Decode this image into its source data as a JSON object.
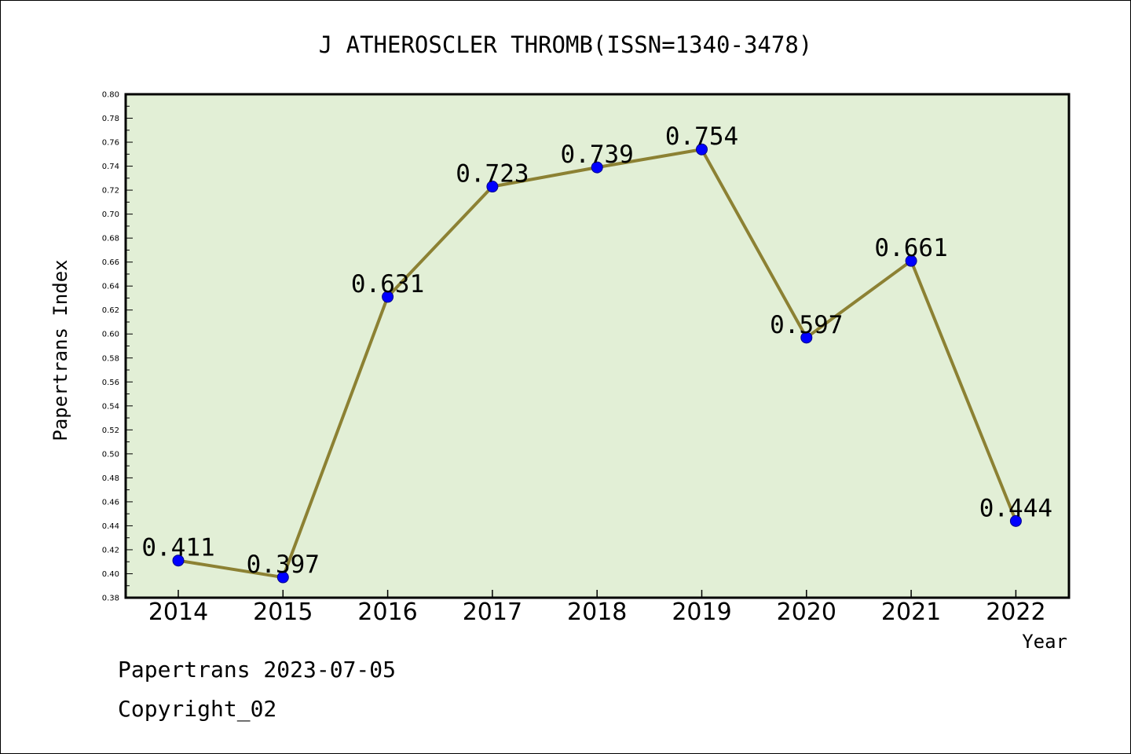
{
  "chart_data": {
    "type": "line",
    "title": "J ATHEROSCLER THROMB(ISSN=1340-3478)",
    "xlabel": "Year",
    "ylabel": "Papertrans Index",
    "categories": [
      "2014",
      "2015",
      "2016",
      "2017",
      "2018",
      "2019",
      "2020",
      "2021",
      "2022"
    ],
    "series": [
      {
        "values": [
          0.411,
          0.397,
          0.631,
          0.723,
          0.739,
          0.754,
          0.597,
          0.661,
          0.444
        ]
      }
    ],
    "data_labels": [
      "0.411",
      "0.397",
      "0.631",
      "0.723",
      "0.739",
      "0.754",
      "0.597",
      "0.661",
      "0.444"
    ],
    "ylim": [
      0.38,
      0.8
    ],
    "y_ticks": [
      "0.38",
      "0.40",
      "0.42",
      "0.44",
      "0.46",
      "0.48",
      "0.50",
      "0.52",
      "0.54",
      "0.56",
      "0.58",
      "0.60",
      "0.62",
      "0.64",
      "0.66",
      "0.68",
      "0.70",
      "0.72",
      "0.74",
      "0.76",
      "0.78",
      "0.80"
    ],
    "grid": false,
    "colors": {
      "plot_background": "#e2efd6",
      "line": "#8c8133",
      "marker": "#0000ff"
    }
  },
  "footer": {
    "line1": "Papertrans 2023-07-05",
    "line2": "Copyright_02"
  }
}
